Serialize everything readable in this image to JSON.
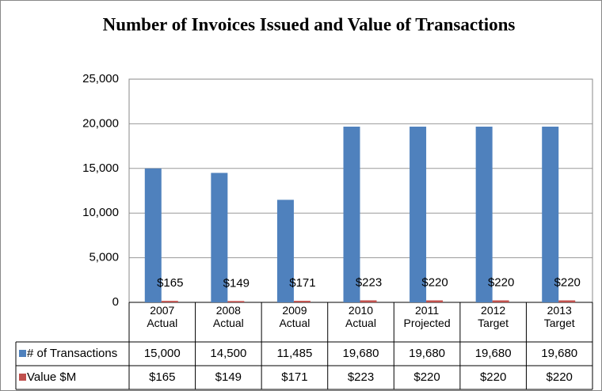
{
  "chart_data": {
    "type": "bar",
    "title": "Number of Invoices Issued and Value of Transactions",
    "categories": [
      "2007 Actual",
      "2008 Actual",
      "2009 Actual",
      "2010 Actual",
      "2011 Projected",
      "2012 Target",
      "2013 Target"
    ],
    "series": [
      {
        "name": "# of Transactions",
        "color": "#4f81bd",
        "values": [
          15000,
          14500,
          11485,
          19680,
          19680,
          19680,
          19680
        ],
        "value_labels": [
          "15,000",
          "14,500",
          "11,485",
          "19,680",
          "19,680",
          "19,680",
          "19,680"
        ]
      },
      {
        "name": "Value $M",
        "color": "#c0504d",
        "values": [
          165,
          149,
          171,
          223,
          220,
          220,
          220
        ],
        "value_labels": [
          "$165",
          "$149",
          "$171",
          "$223",
          "$220",
          "$220",
          "$220"
        ]
      }
    ],
    "ylim": [
      0,
      25000
    ],
    "yticks": [
      0,
      {
        "value": 5000,
        "label": "5,000"
      },
      {
        "value": 10000,
        "label": "10,000"
      },
      {
        "value": 15000,
        "label": "15,000"
      },
      {
        "value": 20000,
        "label": "20,000"
      },
      {
        "value": 25000,
        "label": "25,000"
      }
    ],
    "grid": true
  }
}
